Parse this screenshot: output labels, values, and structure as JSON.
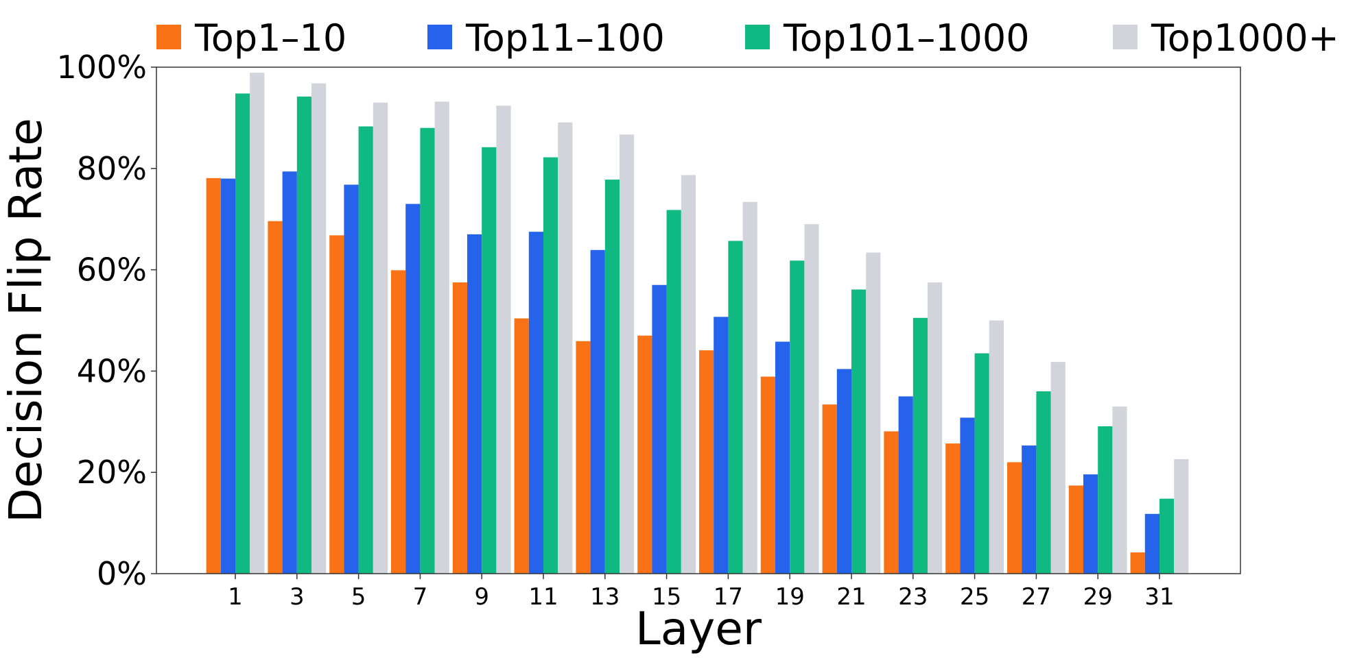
{
  "chart_data": {
    "type": "bar",
    "xlabel": "Layer",
    "ylabel": "Decision Flip Rate",
    "categories": [
      "1",
      "3",
      "5",
      "7",
      "9",
      "11",
      "13",
      "15",
      "17",
      "19",
      "21",
      "23",
      "25",
      "27",
      "29",
      "31"
    ],
    "ylim": [
      0,
      100
    ],
    "yticks": [
      "0%",
      "20%",
      "40%",
      "60%",
      "80%",
      "100%"
    ],
    "legend_position": "top",
    "grid": false,
    "series": [
      {
        "name": "Top1–10",
        "color": "#f97316",
        "values": [
          78.1,
          69.6,
          66.8,
          59.9,
          57.5,
          50.4,
          45.9,
          47.0,
          44.1,
          38.9,
          33.4,
          28.1,
          25.7,
          22.0,
          17.4,
          4.2
        ]
      },
      {
        "name": "Top11–100",
        "color": "#2563eb",
        "values": [
          78.0,
          79.4,
          76.8,
          73.0,
          67.0,
          67.5,
          63.9,
          57.0,
          50.7,
          45.8,
          40.4,
          35.0,
          30.8,
          25.3,
          19.6,
          11.8
        ]
      },
      {
        "name": "Top101–1000",
        "color": "#10b981",
        "values": [
          94.8,
          94.2,
          88.3,
          88.0,
          84.2,
          82.2,
          77.8,
          71.8,
          65.7,
          61.8,
          56.1,
          50.5,
          43.5,
          36.0,
          29.1,
          14.8
        ]
      },
      {
        "name": "Top1000+",
        "color": "#d1d5db",
        "values": [
          98.9,
          96.8,
          93.0,
          93.2,
          92.4,
          89.1,
          86.7,
          78.7,
          73.4,
          69.0,
          63.4,
          57.5,
          50.0,
          41.8,
          33.0,
          22.6
        ]
      }
    ]
  }
}
